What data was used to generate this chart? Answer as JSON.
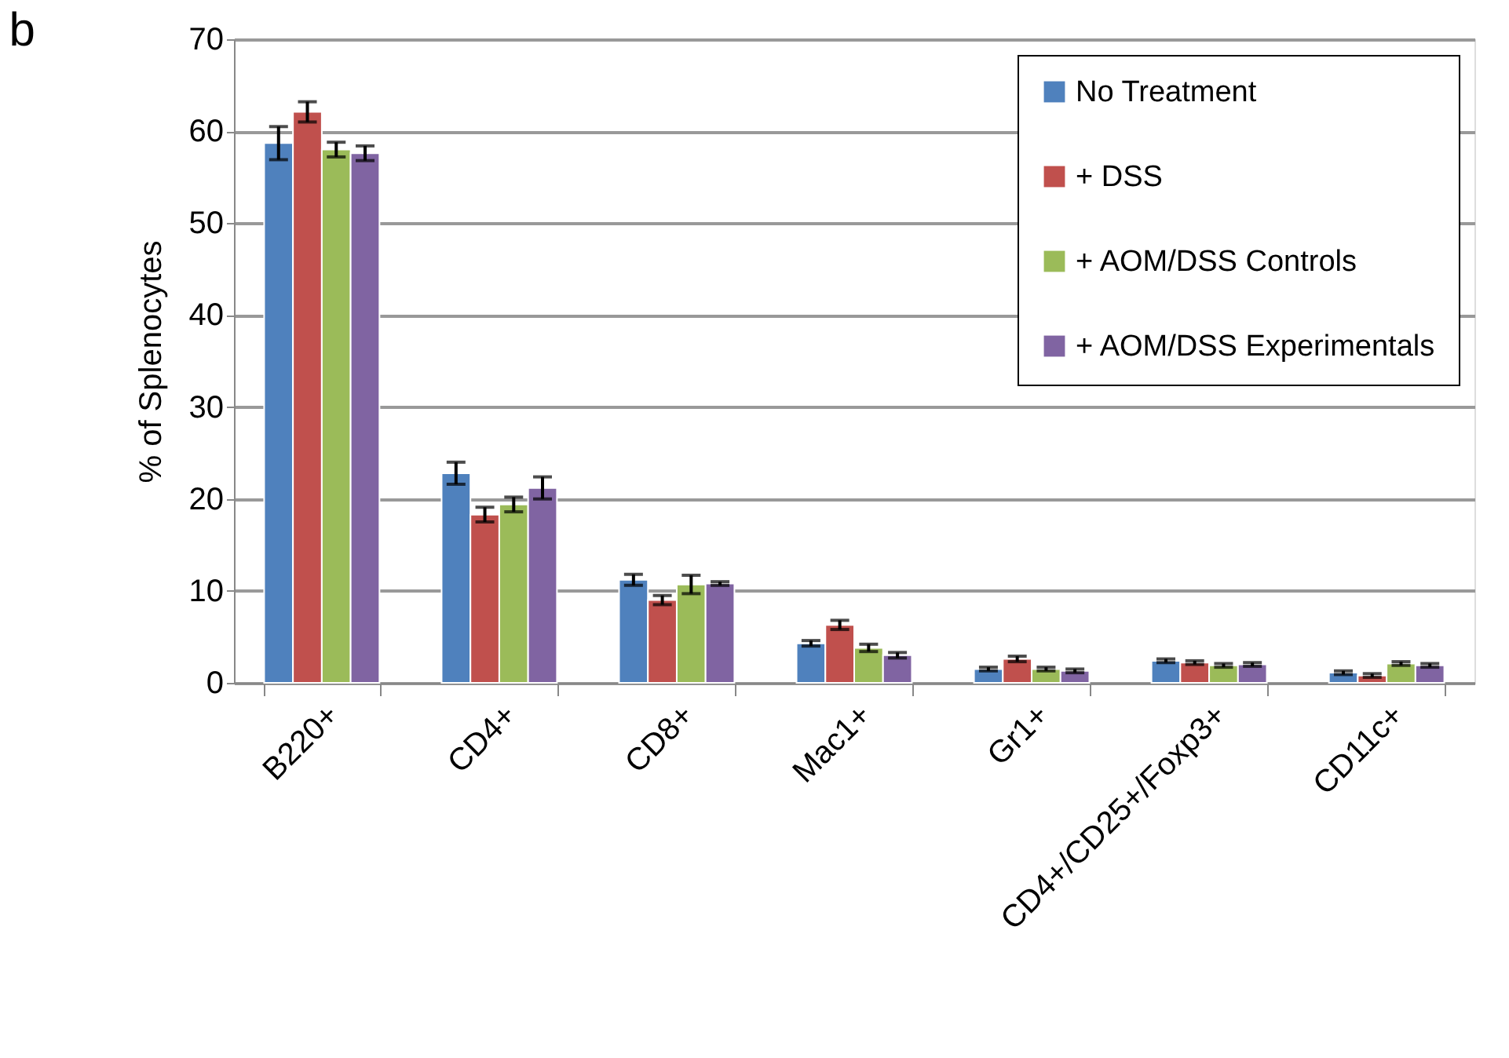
{
  "chart_data": {
    "type": "bar",
    "title": "b",
    "ylabel": "% of Splenocytes",
    "categories": [
      "B220+",
      "CD4+",
      "CD8+",
      "Mac1+",
      "Gr1+",
      "CD4+/CD25+/Foxp3+",
      "CD11c+"
    ],
    "series": [
      {
        "name": "No Treatment",
        "color": "#4f81bd",
        "values": [
          58.7,
          22.8,
          11.2,
          4.3,
          1.5,
          2.4,
          1.1
        ],
        "errors": [
          1.8,
          1.2,
          0.6,
          0.3,
          0.2,
          0.2,
          0.2
        ]
      },
      {
        "name": "+ DSS",
        "color": "#c0504d",
        "values": [
          62.1,
          18.3,
          9.0,
          6.3,
          2.6,
          2.2,
          0.8
        ],
        "errors": [
          1.1,
          0.8,
          0.5,
          0.5,
          0.3,
          0.2,
          0.2
        ]
      },
      {
        "name": "+ AOM/DSS Controls",
        "color": "#9bbb59",
        "values": [
          58.0,
          19.4,
          10.7,
          3.8,
          1.5,
          1.9,
          2.1
        ],
        "errors": [
          0.8,
          0.8,
          1.0,
          0.4,
          0.2,
          0.2,
          0.2
        ]
      },
      {
        "name": "+ AOM/DSS Experimentals",
        "color": "#8064a2",
        "values": [
          57.6,
          21.2,
          10.8,
          3.0,
          1.3,
          2.0,
          1.9
        ],
        "errors": [
          0.8,
          1.2,
          0.2,
          0.3,
          0.2,
          0.2,
          0.2
        ]
      }
    ],
    "ylim": [
      0,
      70
    ],
    "yticks": [
      0,
      10,
      20,
      30,
      40,
      50,
      60,
      70
    ],
    "grid": "y",
    "legend": "top right"
  }
}
